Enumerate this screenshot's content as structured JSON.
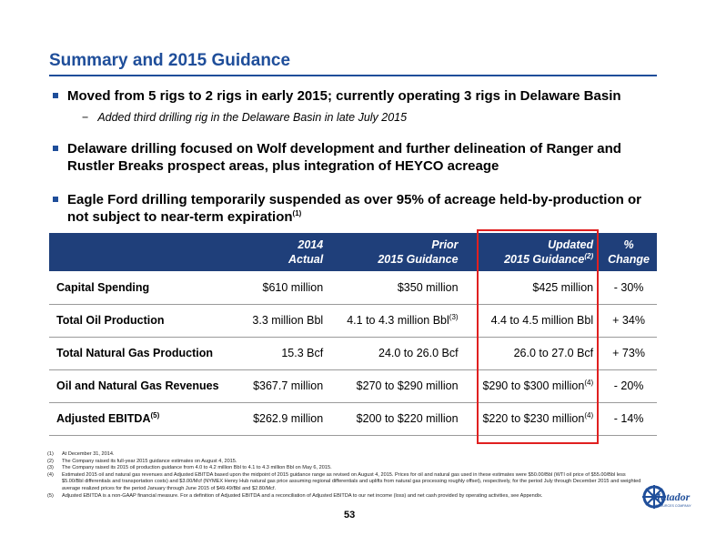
{
  "title": "Summary and 2015 Guidance",
  "bullets": [
    {
      "text": "Moved from 5 rigs to 2 rigs in early 2015; currently operating 3 rigs in Delaware Basin",
      "sub": "Added third drilling rig in the Delaware Basin in late July 2015"
    },
    {
      "text": "Delaware drilling focused on Wolf development and further delineation of Ranger and Rustler Breaks prospect areas, plus integration of HEYCO acreage"
    },
    {
      "text": "Eagle Ford drilling temporarily suspended as over 95% of acreage held-by-production or not subject to near-term expiration",
      "sup": "(1)"
    }
  ],
  "table": {
    "headers": [
      {
        "line1": "",
        "line2": ""
      },
      {
        "line1": "2014",
        "line2": "Actual"
      },
      {
        "line1": "Prior",
        "line2": "2015 Guidance"
      },
      {
        "line1": "Updated",
        "line2": "2015 Guidance",
        "sup": "(2)"
      },
      {
        "line1": "%",
        "line2": "Change"
      }
    ],
    "rows": [
      {
        "label": "Capital Spending",
        "label_sup": "",
        "actual": "$610 million",
        "prior": "$350 million",
        "prior_sup": "",
        "updated": "$425 million",
        "updated_sup": "",
        "change": "- 30%"
      },
      {
        "label": "Total Oil Production",
        "label_sup": "",
        "actual": "3.3 million Bbl",
        "prior": "4.1 to 4.3 million Bbl",
        "prior_sup": "(3)",
        "updated": "4.4 to 4.5 million Bbl",
        "updated_sup": "",
        "change": "+ 34%"
      },
      {
        "label": "Total Natural Gas Production",
        "label_sup": "",
        "actual": "15.3 Bcf",
        "prior": "24.0 to 26.0 Bcf",
        "prior_sup": "",
        "updated": "26.0 to 27.0 Bcf",
        "updated_sup": "",
        "change": "+ 73%"
      },
      {
        "label": "Oil and Natural Gas Revenues",
        "label_sup": "",
        "actual": "$367.7 million",
        "prior": "$270 to $290 million",
        "prior_sup": "",
        "updated": "$290 to $300 million",
        "updated_sup": "(4)",
        "change": "- 20%"
      },
      {
        "label": "Adjusted EBITDA",
        "label_sup": "(5)",
        "actual": "$262.9 million",
        "prior": "$200 to $220 million",
        "prior_sup": "",
        "updated": "$220 to $230 million",
        "updated_sup": "(4)",
        "change": "- 14%"
      }
    ]
  },
  "footnotes": [
    {
      "num": "(1)",
      "text": "At December 31, 2014."
    },
    {
      "num": "(2)",
      "text": "The Company raised its full-year 2015 guidance estimates on August 4, 2015."
    },
    {
      "num": "(3)",
      "text": "The Company raised its 2015 oil production guidance from 4.0 to 4.2 million Bbl to 4.1 to 4.3 million Bbl on May 6, 2015."
    },
    {
      "num": "(4)",
      "text": "Estimated 2015 oil and natural gas revenues and Adjusted EBITDA based upon the midpoint of 2015 guidance range as revised on August 4, 2015. Prices for oil and natural gas used in these estimates were $50.00/Bbl (WTI oil price of $55.00/Bbl less $5.00/Bbl differentials and transportation costs) and $3.00/Mcf (NYMEX Henry Hub natural gas price assuming regional differentials and uplifts from natural gas processing roughly offset), respectively, for the period July through December 2015 and weighted average realized prices for the period January through June 2015 of $49.49/Bbl and $2.80/Mcf."
    },
    {
      "num": "(5)",
      "text": "Adjusted EBITDA is a non-GAAP financial measure. For a definition of Adjusted EBITDA and a reconciliation of Adjusted EBITDA to our net income (loss) and net cash provided by operating activities, see Appendix."
    }
  ],
  "page_number": "53",
  "logo": {
    "text": "Matador",
    "subtext": "RESOURCES COMPANY"
  },
  "colors": {
    "brand_blue": "#1f4e9a",
    "header_navy": "#1f3f7a",
    "highlight_red": "#e02020"
  }
}
